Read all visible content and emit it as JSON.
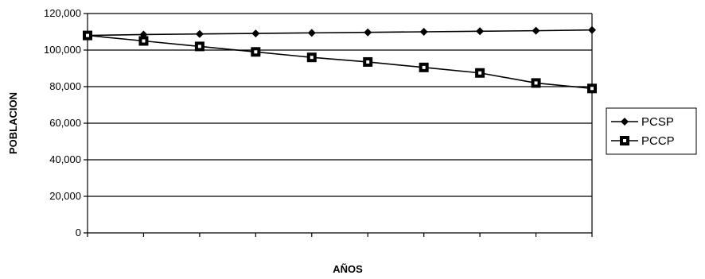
{
  "chart_data": {
    "type": "line",
    "title": "",
    "xlabel": "AÑOS",
    "ylabel": "POBLACION",
    "ylim": [
      0,
      120000
    ],
    "yticks": [
      0,
      20000,
      40000,
      60000,
      80000,
      100000,
      120000
    ],
    "ytick_labels": [
      "0",
      "20,000",
      "40,000",
      "60,000",
      "80,000",
      "100,000",
      "120,000"
    ],
    "grid": true,
    "legend_position": "right",
    "x": [
      1,
      2,
      3,
      4,
      5,
      6,
      7,
      8,
      9,
      10
    ],
    "categories": [
      "",
      "",
      "",
      "",
      "",
      "",
      "",
      "",
      "",
      ""
    ],
    "series": [
      {
        "name": "PCSP",
        "marker": "diamond",
        "color": "#000000",
        "values": [
          108000,
          108500,
          108800,
          109100,
          109400,
          109700,
          110000,
          110300,
          110600,
          111000
        ]
      },
      {
        "name": "PCCP",
        "marker": "square",
        "color": "#000000",
        "values": [
          108000,
          105000,
          102000,
          99000,
          96000,
          93500,
          90500,
          87500,
          82000,
          79000
        ]
      }
    ]
  }
}
